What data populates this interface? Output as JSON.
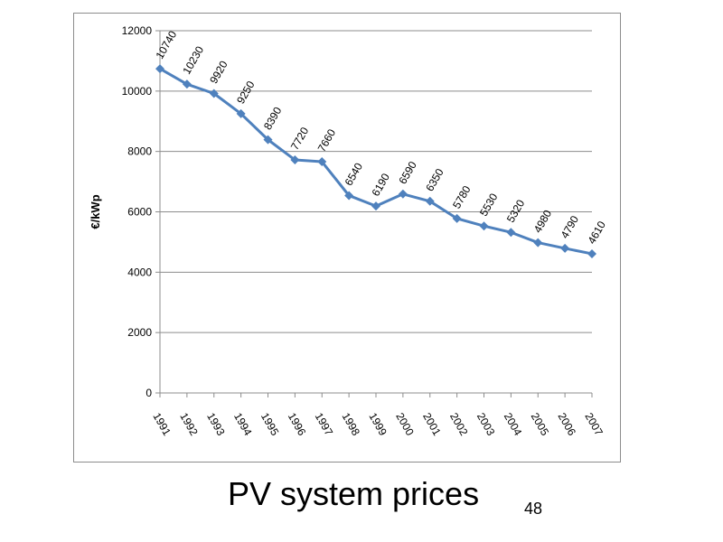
{
  "slide": {
    "title": "PV system prices",
    "page_number": "48"
  },
  "chart_data": {
    "type": "line",
    "title": "",
    "xlabel": "",
    "ylabel": "€/kWp",
    "ylim": [
      0,
      12000
    ],
    "y_ticks": [
      0,
      2000,
      4000,
      6000,
      8000,
      10000,
      12000
    ],
    "grid": true,
    "legend": "none",
    "line_color": "#4f81bd",
    "categories": [
      "1991",
      "1992",
      "1993",
      "1994",
      "1995",
      "1996",
      "1997",
      "1998",
      "1999",
      "2000",
      "2001",
      "2002",
      "2003",
      "2004",
      "2005",
      "2006",
      "2007"
    ],
    "series": [
      {
        "values": [
          10740,
          10230,
          9920,
          9250,
          8390,
          7720,
          7660,
          6540,
          6190,
          6590,
          6350,
          5780,
          5530,
          5320,
          4980,
          4790,
          4610
        ]
      }
    ]
  }
}
